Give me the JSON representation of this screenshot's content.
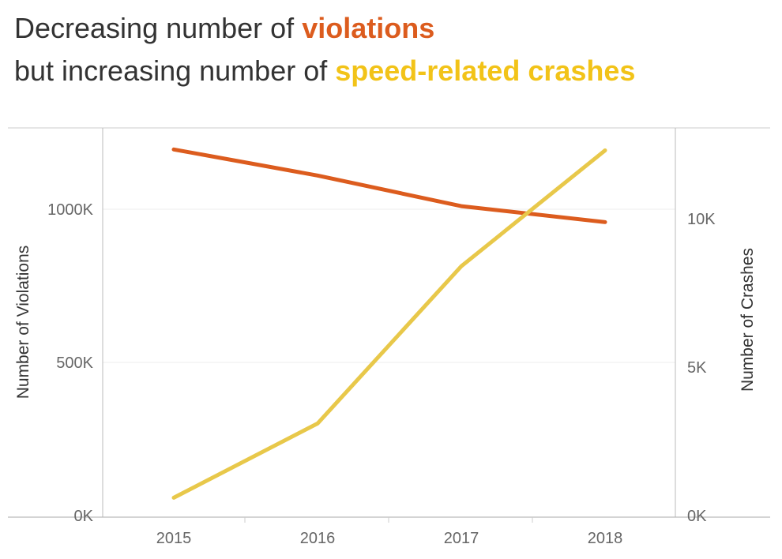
{
  "title": {
    "line1_prefix": "Decreasing number of ",
    "line1_highlight": "violations",
    "line2_prefix": "but increasing number of ",
    "line2_highlight": "speed-related crashes"
  },
  "colors": {
    "violations": "#dc5c1e",
    "crashes": "#e8c84a",
    "grid": "#eeeeee",
    "axis": "#bbbbbb"
  },
  "chart_data": {
    "type": "line",
    "x": [
      "2015",
      "2016",
      "2017",
      "2018"
    ],
    "series": [
      {
        "name": "violations",
        "axis": "left",
        "values": [
          1195000,
          1110000,
          1010000,
          958000
        ]
      },
      {
        "name": "speed-related crashes",
        "axis": "right",
        "values": [
          600,
          3100,
          8400,
          12300
        ]
      }
    ],
    "left_axis": {
      "label": "Number of Violations",
      "ticks": [
        {
          "value": 0,
          "label": "0K"
        },
        {
          "value": 500000,
          "label": "500K"
        },
        {
          "value": 1000000,
          "label": "1000K"
        }
      ],
      "range": [
        0,
        1000000
      ]
    },
    "right_axis": {
      "label": "Number of Crashes",
      "ticks": [
        {
          "value": 0,
          "label": "0K"
        },
        {
          "value": 5000,
          "label": "5K"
        },
        {
          "value": 10000,
          "label": "10K"
        }
      ],
      "range": [
        0,
        10000
      ]
    },
    "grid": true
  }
}
